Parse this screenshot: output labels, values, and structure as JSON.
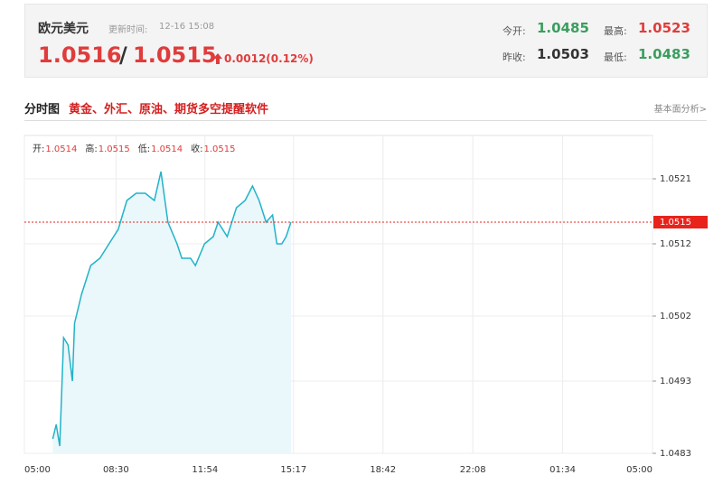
{
  "quote": {
    "name": "欧元美元",
    "update_label": "更新时间:",
    "update_time": "12-16 15:08",
    "bid": "1.0516",
    "separator": "/",
    "ask": "1.0515",
    "change": "0.0012(0.12%)",
    "open_label": "今开:",
    "open": "1.0485",
    "high_label": "最高:",
    "high": "1.0523",
    "prev_close_label": "昨收:",
    "prev_close": "1.0503",
    "low_label": "最低:",
    "low": "1.0483"
  },
  "tabs": {
    "active": "分时图",
    "promo": "黄金、外汇、原油、期货多空提醒软件",
    "link": "基本面分析>"
  },
  "chart_data": {
    "type": "line",
    "ohlc": [
      {
        "label": "开:",
        "value": "1.0514"
      },
      {
        "label": "高:",
        "value": "1.0515"
      },
      {
        "label": "低:",
        "value": "1.0514"
      },
      {
        "label": "收:",
        "value": "1.0515"
      }
    ],
    "x": [
      65,
      73,
      81,
      90,
      100,
      110,
      115,
      131,
      152,
      173,
      194,
      215,
      235,
      256,
      277,
      298,
      313,
      329,
      350,
      361,
      381,
      392,
      413,
      433,
      444,
      465,
      486,
      506,
      523,
      538,
      554,
      569,
      579,
      590,
      600,
      611
    ],
    "series": [
      {
        "name": "price",
        "color": "#22b3c8",
        "values": [
          1.0485,
          1.0487,
          1.0484,
          1.0499,
          1.0498,
          1.0493,
          1.0501,
          1.0505,
          1.0509,
          1.051,
          1.0512,
          1.0514,
          1.0518,
          1.0519,
          1.0519,
          1.0518,
          1.0522,
          1.0515,
          1.0512,
          1.051,
          1.051,
          1.0509,
          1.0512,
          1.0513,
          1.0515,
          1.0513,
          1.0517,
          1.0518,
          1.052,
          1.0518,
          1.0515,
          1.0516,
          1.0512,
          1.0512,
          1.0513,
          1.0515
        ]
      }
    ],
    "area_color": "#eaf7fb",
    "last_price": 1.0515,
    "last_price_color": "#e8231b",
    "xlim": [
      0,
      1440
    ],
    "xticks": [
      {
        "value": 0,
        "label": "05:00"
      },
      {
        "value": 210,
        "label": "08:30"
      },
      {
        "value": 414,
        "label": "11:54"
      },
      {
        "value": 617,
        "label": "15:17"
      },
      {
        "value": 822,
        "label": "18:42"
      },
      {
        "value": 1028,
        "label": "22:08"
      },
      {
        "value": 1234,
        "label": "01:34"
      },
      {
        "value": 1440,
        "label": "05:00"
      }
    ],
    "ylim": [
      1.0483,
      1.0527
    ],
    "yticks": [
      1.0483,
      1.0493,
      1.0502,
      1.0512,
      1.0521
    ],
    "grid": true
  }
}
